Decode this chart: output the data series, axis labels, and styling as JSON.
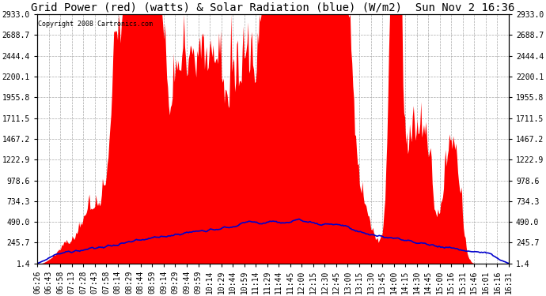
{
  "title": "Grid Power (red) (watts) & Solar Radiation (blue) (W/m2)  Sun Nov 2 16:36",
  "copyright": "Copyright 2008 Cartronics.com",
  "y_ticks": [
    1.4,
    245.7,
    490.0,
    734.3,
    978.6,
    1222.9,
    1467.2,
    1711.5,
    1955.8,
    2200.1,
    2444.4,
    2688.7,
    2933.0
  ],
  "x_labels": [
    "06:26",
    "06:43",
    "06:58",
    "07:13",
    "07:28",
    "07:43",
    "07:58",
    "08:14",
    "08:29",
    "08:44",
    "08:59",
    "09:14",
    "09:29",
    "09:44",
    "09:59",
    "10:14",
    "10:29",
    "10:44",
    "10:59",
    "11:14",
    "11:29",
    "11:44",
    "11:45",
    "12:00",
    "12:15",
    "12:30",
    "12:45",
    "13:00",
    "13:15",
    "13:30",
    "13:45",
    "14:00",
    "14:15",
    "14:30",
    "14:45",
    "15:00",
    "15:16",
    "15:31",
    "15:46",
    "16:01",
    "16:16",
    "16:31"
  ],
  "background_color": "#ffffff",
  "plot_bg_color": "#ffffff",
  "grid_color": "#aaaaaa",
  "red_color": "#ff0000",
  "blue_color": "#0000cc",
  "title_fontsize": 10,
  "tick_fontsize": 7,
  "ylim_min": 1.4,
  "ylim_max": 2933.0,
  "figwidth": 6.9,
  "figheight": 3.75,
  "dpi": 100
}
